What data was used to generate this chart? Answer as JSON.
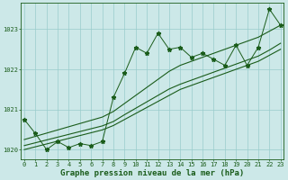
{
  "xlabel": "Graphe pression niveau de la mer (hPa)",
  "background_color": "#cce8e8",
  "grid_color": "#99cccc",
  "line_color": "#1a5c1a",
  "text_color": "#1a5c1a",
  "x_values": [
    0,
    1,
    2,
    3,
    4,
    5,
    6,
    7,
    8,
    9,
    10,
    11,
    12,
    13,
    14,
    15,
    16,
    17,
    18,
    19,
    20,
    21,
    22,
    23
  ],
  "y_values": [
    1020.75,
    1020.4,
    1020.0,
    1020.2,
    1020.05,
    1020.15,
    1020.1,
    1020.2,
    1021.3,
    1021.9,
    1022.55,
    1022.4,
    1022.9,
    1022.5,
    1022.55,
    1022.3,
    1022.4,
    1022.25,
    1022.1,
    1022.6,
    1022.1,
    1022.55,
    1023.5,
    1023.1
  ],
  "trend_lo": [
    1020.0,
    1020.07,
    1020.14,
    1020.21,
    1020.28,
    1020.35,
    1020.42,
    1020.49,
    1020.6,
    1020.75,
    1020.9,
    1021.05,
    1021.2,
    1021.35,
    1021.5,
    1021.6,
    1021.7,
    1021.8,
    1021.9,
    1022.0,
    1022.1,
    1022.2,
    1022.35,
    1022.5
  ],
  "trend_mid": [
    1020.1,
    1020.17,
    1020.24,
    1020.31,
    1020.38,
    1020.45,
    1020.52,
    1020.59,
    1020.7,
    1020.87,
    1021.03,
    1021.19,
    1021.35,
    1021.51,
    1021.63,
    1021.73,
    1021.83,
    1021.93,
    1022.03,
    1022.13,
    1022.23,
    1022.33,
    1022.48,
    1022.65
  ],
  "trend_hi": [
    1020.25,
    1020.33,
    1020.41,
    1020.49,
    1020.57,
    1020.65,
    1020.73,
    1020.81,
    1020.95,
    1021.15,
    1021.35,
    1021.55,
    1021.75,
    1021.95,
    1022.1,
    1022.2,
    1022.3,
    1022.4,
    1022.5,
    1022.6,
    1022.7,
    1022.8,
    1022.95,
    1023.1
  ],
  "ylim": [
    1019.75,
    1023.65
  ],
  "yticks": [
    1020,
    1021,
    1022,
    1023
  ],
  "xticks": [
    0,
    1,
    2,
    3,
    4,
    5,
    6,
    7,
    8,
    9,
    10,
    11,
    12,
    13,
    14,
    15,
    16,
    17,
    18,
    19,
    20,
    21,
    22,
    23
  ],
  "marker": "*",
  "marker_size": 3.5,
  "tick_fontsize": 5.0,
  "xlabel_fontsize": 6.5,
  "fig_width": 3.2,
  "fig_height": 2.0,
  "dpi": 100
}
